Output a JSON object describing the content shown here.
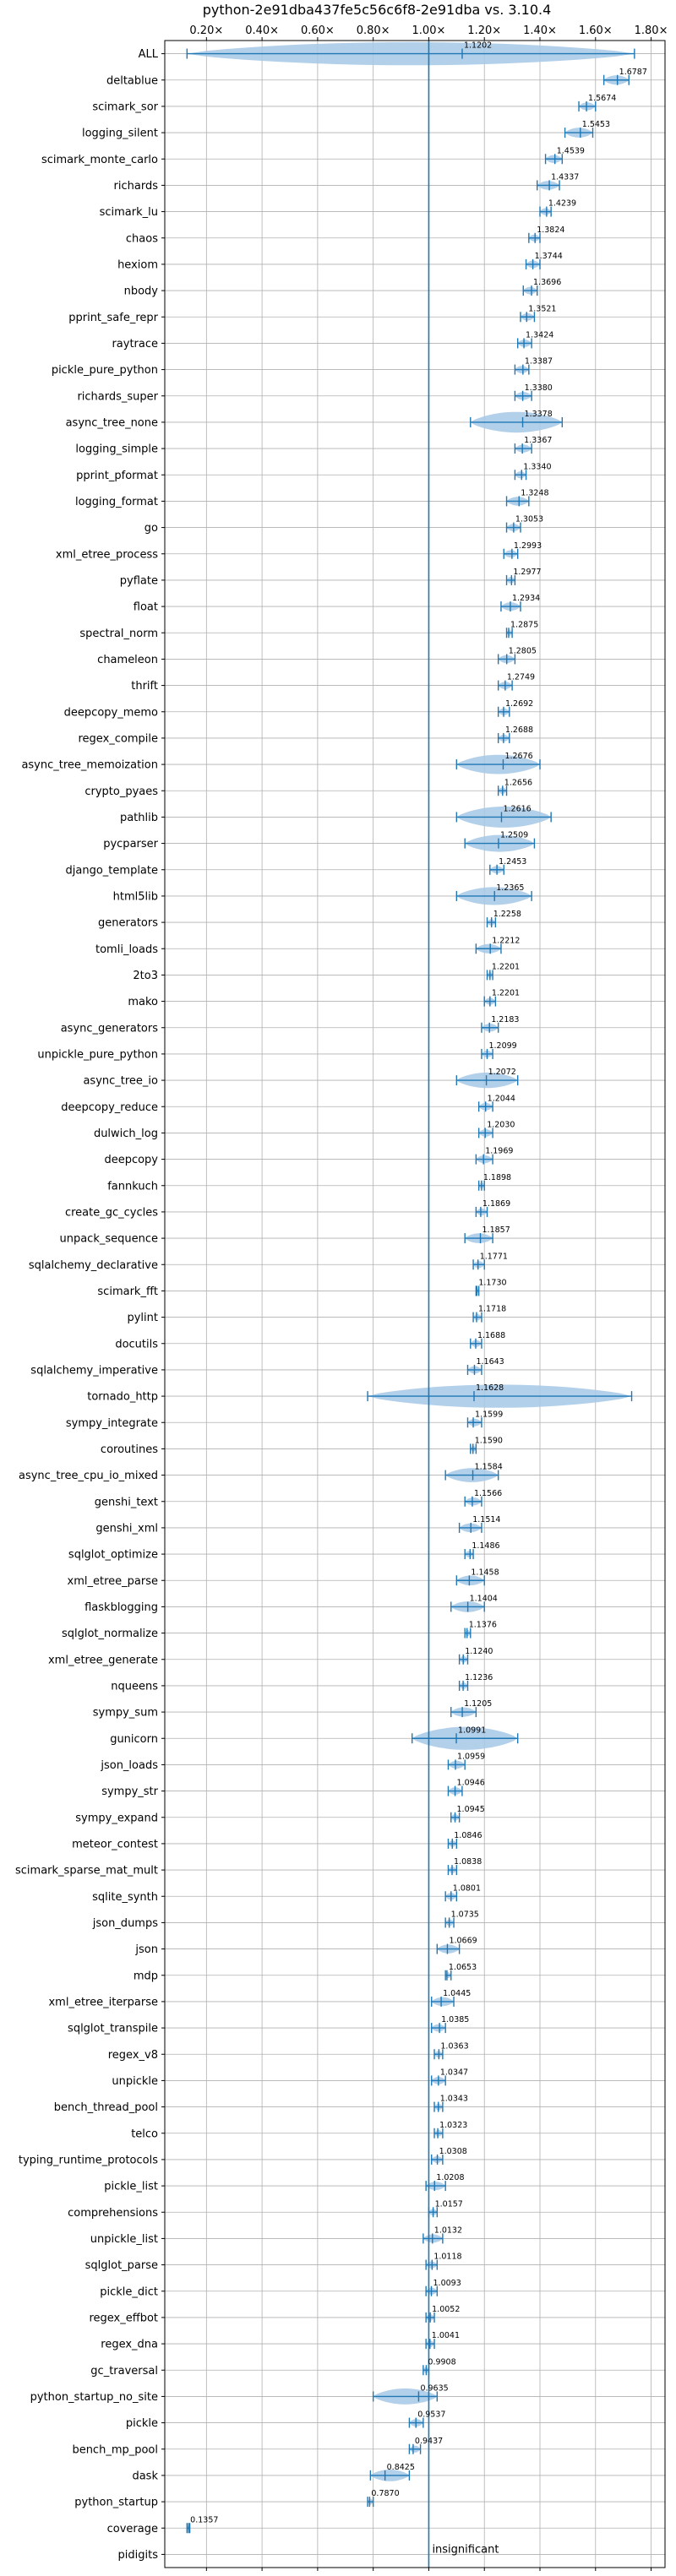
{
  "chart_data": {
    "type": "violin",
    "title": "python-2e91dba437fe5c56c6f8-2e91dba vs. 3.10.4",
    "xlim": [
      0.05,
      1.85
    ],
    "xticks": [
      0.2,
      0.4,
      0.6,
      0.8,
      1.0,
      1.2,
      1.4,
      1.6,
      1.8
    ],
    "xtick_labels": [
      "0.20×",
      "0.40×",
      "0.60×",
      "0.80×",
      "1.00×",
      "1.20×",
      "1.40×",
      "1.60×",
      "1.80×"
    ],
    "reference_line": 1.0,
    "grid": true,
    "annotation": "insignificant",
    "categories": [
      "ALL",
      "deltablue",
      "scimark_sor",
      "logging_silent",
      "scimark_monte_carlo",
      "richards",
      "scimark_lu",
      "chaos",
      "hexiom",
      "nbody",
      "pprint_safe_repr",
      "raytrace",
      "pickle_pure_python",
      "richards_super",
      "async_tree_none",
      "logging_simple",
      "pprint_pformat",
      "logging_format",
      "go",
      "xml_etree_process",
      "pyflate",
      "float",
      "spectral_norm",
      "chameleon",
      "thrift",
      "deepcopy_memo",
      "regex_compile",
      "async_tree_memoization",
      "crypto_pyaes",
      "pathlib",
      "pycparser",
      "django_template",
      "html5lib",
      "generators",
      "tomli_loads",
      "2to3",
      "mako",
      "async_generators",
      "unpickle_pure_python",
      "async_tree_io",
      "deepcopy_reduce",
      "dulwich_log",
      "deepcopy",
      "fannkuch",
      "create_gc_cycles",
      "unpack_sequence",
      "sqlalchemy_declarative",
      "scimark_fft",
      "pylint",
      "docutils",
      "sqlalchemy_imperative",
      "tornado_http",
      "sympy_integrate",
      "coroutines",
      "async_tree_cpu_io_mixed",
      "genshi_text",
      "genshi_xml",
      "sqlglot_optimize",
      "xml_etree_parse",
      "flaskblogging",
      "sqlglot_normalize",
      "xml_etree_generate",
      "nqueens",
      "sympy_sum",
      "gunicorn",
      "json_loads",
      "sympy_str",
      "sympy_expand",
      "meteor_contest",
      "scimark_sparse_mat_mult",
      "sqlite_synth",
      "json_dumps",
      "json",
      "mdp",
      "xml_etree_iterparse",
      "sqlglot_transpile",
      "regex_v8",
      "unpickle",
      "bench_thread_pool",
      "telco",
      "typing_runtime_protocols",
      "pickle_list",
      "comprehensions",
      "unpickle_list",
      "sqlglot_parse",
      "pickle_dict",
      "regex_effbot",
      "regex_dna",
      "gc_traversal",
      "python_startup_no_site",
      "pickle",
      "bench_mp_pool",
      "dask",
      "python_startup",
      "coverage",
      "pidigits"
    ],
    "values": [
      1.1202,
      1.6787,
      1.5674,
      1.5453,
      1.4539,
      1.4337,
      1.4239,
      1.3824,
      1.3744,
      1.3696,
      1.3521,
      1.3424,
      1.3387,
      1.338,
      1.3378,
      1.3367,
      1.334,
      1.3248,
      1.3053,
      1.2993,
      1.2977,
      1.2934,
      1.2875,
      1.2805,
      1.2749,
      1.2692,
      1.2688,
      1.2676,
      1.2656,
      1.2616,
      1.2509,
      1.2453,
      1.2365,
      1.2258,
      1.2212,
      1.2201,
      1.2201,
      1.2183,
      1.2099,
      1.2072,
      1.2044,
      1.203,
      1.1969,
      1.1898,
      1.1869,
      1.1857,
      1.1771,
      1.173,
      1.1718,
      1.1688,
      1.1643,
      1.1628,
      1.1599,
      1.159,
      1.1584,
      1.1566,
      1.1514,
      1.1486,
      1.1458,
      1.1404,
      1.1376,
      1.124,
      1.1236,
      1.1205,
      1.0991,
      1.0959,
      1.0946,
      1.0945,
      1.0846,
      1.0838,
      1.0801,
      1.0735,
      1.0669,
      1.0653,
      1.0445,
      1.0385,
      1.0363,
      1.0347,
      1.0343,
      1.0323,
      1.0308,
      1.0208,
      1.0157,
      1.0132,
      1.0118,
      1.0093,
      1.0052,
      1.0041,
      0.9908,
      0.9635,
      0.9537,
      0.9437,
      0.8425,
      0.787,
      0.1357,
      null
    ],
    "value_labels": [
      "1.1202",
      "1.6787",
      "1.5674",
      "1.5453",
      "1.4539",
      "1.4337",
      "1.4239",
      "1.3824",
      "1.3744",
      "1.3696",
      "1.3521",
      "1.3424",
      "1.3387",
      "1.3380",
      "1.3378",
      "1.3367",
      "1.3340",
      "1.3248",
      "1.3053",
      "1.2993",
      "1.2977",
      "1.2934",
      "1.2875",
      "1.2805",
      "1.2749",
      "1.2692",
      "1.2688",
      "1.2676",
      "1.2656",
      "1.2616",
      "1.2509",
      "1.2453",
      "1.2365",
      "1.2258",
      "1.2212",
      "1.2201",
      "1.2201",
      "1.2183",
      "1.2099",
      "1.2072",
      "1.2044",
      "1.2030",
      "1.1969",
      "1.1898",
      "1.1869",
      "1.1857",
      "1.1771",
      "1.1730",
      "1.1718",
      "1.1688",
      "1.1643",
      "1.1628",
      "1.1599",
      "1.1590",
      "1.1584",
      "1.1566",
      "1.1514",
      "1.1486",
      "1.1458",
      "1.1404",
      "1.1376",
      "1.1240",
      "1.1236",
      "1.1205",
      "1.0991",
      "1.0959",
      "1.0946",
      "1.0945",
      "1.0846",
      "1.0838",
      "1.0801",
      "1.0735",
      "1.0669",
      "1.0653",
      "1.0445",
      "1.0385",
      "1.0363",
      "1.0347",
      "1.0343",
      "1.0323",
      "1.0308",
      "1.0208",
      "1.0157",
      "1.0132",
      "1.0118",
      "1.0093",
      "1.0052",
      "1.0041",
      "0.9908",
      "0.9635",
      "0.9537",
      "0.9437",
      "0.8425",
      "0.7870",
      "0.1357",
      ""
    ],
    "ranges": [
      [
        0.13,
        1.74
      ],
      [
        1.63,
        1.72
      ],
      [
        1.54,
        1.6
      ],
      [
        1.49,
        1.59
      ],
      [
        1.42,
        1.48
      ],
      [
        1.39,
        1.47
      ],
      [
        1.4,
        1.44
      ],
      [
        1.36,
        1.4
      ],
      [
        1.35,
        1.4
      ],
      [
        1.34,
        1.39
      ],
      [
        1.33,
        1.38
      ],
      [
        1.32,
        1.37
      ],
      [
        1.31,
        1.36
      ],
      [
        1.31,
        1.37
      ],
      [
        1.15,
        1.48
      ],
      [
        1.31,
        1.37
      ],
      [
        1.31,
        1.35
      ],
      [
        1.28,
        1.36
      ],
      [
        1.28,
        1.33
      ],
      [
        1.27,
        1.32
      ],
      [
        1.28,
        1.31
      ],
      [
        1.26,
        1.33
      ],
      [
        1.28,
        1.3
      ],
      [
        1.25,
        1.31
      ],
      [
        1.25,
        1.3
      ],
      [
        1.25,
        1.29
      ],
      [
        1.25,
        1.29
      ],
      [
        1.1,
        1.4
      ],
      [
        1.25,
        1.28
      ],
      [
        1.1,
        1.44
      ],
      [
        1.13,
        1.38
      ],
      [
        1.22,
        1.27
      ],
      [
        1.1,
        1.37
      ],
      [
        1.21,
        1.24
      ],
      [
        1.17,
        1.26
      ],
      [
        1.21,
        1.23
      ],
      [
        1.2,
        1.24
      ],
      [
        1.19,
        1.25
      ],
      [
        1.19,
        1.23
      ],
      [
        1.1,
        1.32
      ],
      [
        1.18,
        1.23
      ],
      [
        1.18,
        1.23
      ],
      [
        1.17,
        1.23
      ],
      [
        1.18,
        1.2
      ],
      [
        1.17,
        1.21
      ],
      [
        1.13,
        1.23
      ],
      [
        1.16,
        1.2
      ],
      [
        1.17,
        1.18
      ],
      [
        1.16,
        1.19
      ],
      [
        1.15,
        1.19
      ],
      [
        1.14,
        1.19
      ],
      [
        0.78,
        1.73
      ],
      [
        1.14,
        1.19
      ],
      [
        1.15,
        1.17
      ],
      [
        1.06,
        1.25
      ],
      [
        1.13,
        1.19
      ],
      [
        1.11,
        1.19
      ],
      [
        1.13,
        1.16
      ],
      [
        1.1,
        1.2
      ],
      [
        1.08,
        1.2
      ],
      [
        1.13,
        1.15
      ],
      [
        1.11,
        1.14
      ],
      [
        1.11,
        1.14
      ],
      [
        1.08,
        1.17
      ],
      [
        0.94,
        1.32
      ],
      [
        1.07,
        1.13
      ],
      [
        1.07,
        1.12
      ],
      [
        1.08,
        1.11
      ],
      [
        1.07,
        1.1
      ],
      [
        1.07,
        1.1
      ],
      [
        1.06,
        1.1
      ],
      [
        1.06,
        1.09
      ],
      [
        1.03,
        1.11
      ],
      [
        1.06,
        1.08
      ],
      [
        1.01,
        1.09
      ],
      [
        1.01,
        1.06
      ],
      [
        1.02,
        1.05
      ],
      [
        1.01,
        1.06
      ],
      [
        1.02,
        1.05
      ],
      [
        1.02,
        1.05
      ],
      [
        1.01,
        1.05
      ],
      [
        0.99,
        1.06
      ],
      [
        1.0,
        1.03
      ],
      [
        0.98,
        1.05
      ],
      [
        0.99,
        1.03
      ],
      [
        0.99,
        1.03
      ],
      [
        0.99,
        1.02
      ],
      [
        0.99,
        1.02
      ],
      [
        0.98,
        1.0
      ],
      [
        0.8,
        1.03
      ],
      [
        0.93,
        0.98
      ],
      [
        0.93,
        0.97
      ],
      [
        0.79,
        0.93
      ],
      [
        0.78,
        0.8
      ],
      [
        0.13,
        0.14
      ],
      null
    ]
  }
}
